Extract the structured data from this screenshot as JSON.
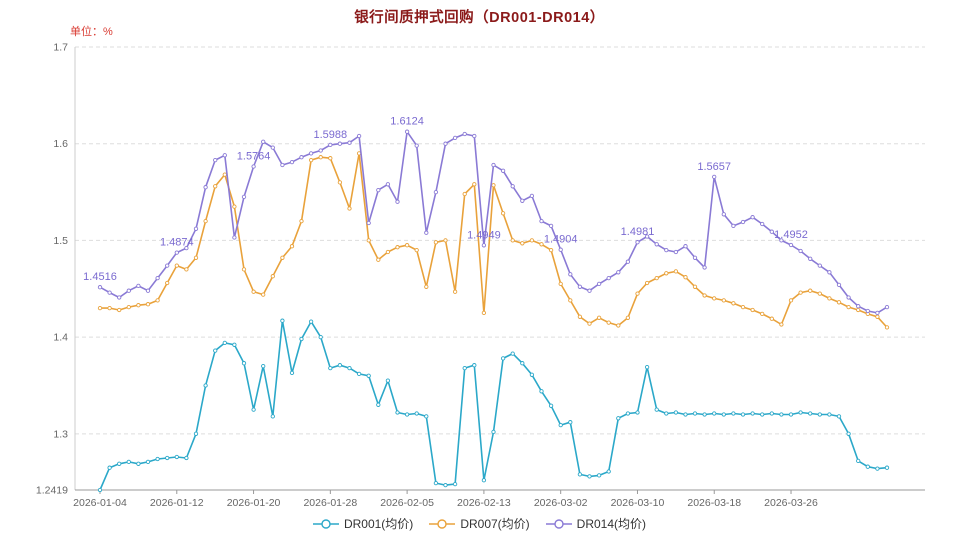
{
  "header": {
    "title": "银行间质押式回购（DR001-DR014）",
    "title_color": "#8B1A1A",
    "unit_label": "单位：%",
    "unit_color": "#D93B32"
  },
  "chart_data": {
    "type": "line",
    "title": "银行间质押式回购（DR001-DR014）",
    "ylabel": "单位：%",
    "ylim": [
      1.2419,
      1.7
    ],
    "grid": "horizontal-dashed",
    "legend_position": "bottom",
    "legend_text_color": "#333333",
    "axis_label_color": "#666666",
    "grid_color": "#DDDDDD",
    "axis_line_color": "#999999",
    "left_axis_color": "#CCCCCC",
    "annotation_color": "#7A6AD0",
    "annotation_series": "dr014",
    "y_ticks": [
      {
        "label": "1.7",
        "value": 1.7
      },
      {
        "label": "1.6",
        "value": 1.6
      },
      {
        "label": "1.5",
        "value": 1.5
      },
      {
        "label": "1.4",
        "value": 1.4
      },
      {
        "label": "1.3",
        "value": 1.3
      },
      {
        "label": "1.2419",
        "value": 1.2419
      }
    ],
    "x_tick_labels": [
      "2026-01-04",
      "2026-01-12",
      "2026-01-20",
      "2026-01-28",
      "2026-02-05",
      "2026-02-13",
      "2026-03-02",
      "2026-03-10",
      "2026-03-18",
      "2026-03-26"
    ],
    "x_tick_indices": [
      0,
      8,
      16,
      24,
      32,
      40,
      48,
      56,
      64,
      72
    ],
    "annotations": [
      {
        "index": 0,
        "text": "1.4516"
      },
      {
        "index": 8,
        "text": "1.4874"
      },
      {
        "index": 16,
        "text": "1.5764"
      },
      {
        "index": 24,
        "text": "1.5988"
      },
      {
        "index": 32,
        "text": "1.6124"
      },
      {
        "index": 40,
        "text": "1.4949"
      },
      {
        "index": 48,
        "text": "1.4904"
      },
      {
        "index": 56,
        "text": "1.4981"
      },
      {
        "index": 64,
        "text": "1.5657"
      },
      {
        "index": 72,
        "text": "1.4952"
      }
    ],
    "series": [
      {
        "id": "dr001",
        "name": "DR001(均价)",
        "color": "#2BA8C9",
        "values": [
          1.2419,
          1.265,
          1.269,
          1.271,
          1.269,
          1.271,
          1.274,
          1.275,
          1.276,
          1.275,
          1.3,
          1.35,
          1.386,
          1.394,
          1.392,
          1.373,
          1.325,
          1.37,
          1.318,
          1.417,
          1.363,
          1.398,
          1.416,
          1.4,
          1.368,
          1.371,
          1.368,
          1.362,
          1.36,
          1.33,
          1.355,
          1.322,
          1.32,
          1.321,
          1.318,
          1.249,
          1.247,
          1.248,
          1.368,
          1.371,
          1.252,
          1.302,
          1.378,
          1.383,
          1.373,
          1.361,
          1.344,
          1.329,
          1.309,
          1.312,
          1.258,
          1.256,
          1.257,
          1.261,
          1.316,
          1.321,
          1.322,
          1.369,
          1.325,
          1.321,
          1.322,
          1.32,
          1.321,
          1.32,
          1.321,
          1.32,
          1.321,
          1.32,
          1.321,
          1.32,
          1.321,
          1.32,
          1.32,
          1.322,
          1.321,
          1.32,
          1.32,
          1.318,
          1.3,
          1.272,
          1.266,
          1.264,
          1.265
        ]
      },
      {
        "id": "dr007",
        "name": "DR007(均价)",
        "color": "#E9A23B",
        "values": [
          1.43,
          1.43,
          1.428,
          1.431,
          1.433,
          1.434,
          1.438,
          1.456,
          1.474,
          1.47,
          1.482,
          1.52,
          1.556,
          1.568,
          1.535,
          1.47,
          1.447,
          1.444,
          1.463,
          1.482,
          1.494,
          1.52,
          1.583,
          1.586,
          1.585,
          1.56,
          1.533,
          1.59,
          1.5,
          1.48,
          1.488,
          1.493,
          1.495,
          1.49,
          1.452,
          1.498,
          1.5,
          1.447,
          1.548,
          1.558,
          1.425,
          1.557,
          1.528,
          1.5,
          1.497,
          1.5,
          1.496,
          1.49,
          1.455,
          1.438,
          1.421,
          1.414,
          1.42,
          1.415,
          1.412,
          1.42,
          1.445,
          1.456,
          1.461,
          1.466,
          1.468,
          1.462,
          1.452,
          1.443,
          1.44,
          1.438,
          1.435,
          1.431,
          1.428,
          1.424,
          1.419,
          1.413,
          1.438,
          1.446,
          1.448,
          1.445,
          1.44,
          1.436,
          1.431,
          1.428,
          1.424,
          1.421,
          1.41
        ]
      },
      {
        "id": "dr014",
        "name": "DR014(均价)",
        "color": "#8A7AD5",
        "values": [
          1.4516,
          1.446,
          1.441,
          1.448,
          1.453,
          1.448,
          1.461,
          1.474,
          1.4874,
          1.492,
          1.512,
          1.555,
          1.583,
          1.588,
          1.503,
          1.545,
          1.5764,
          1.602,
          1.596,
          1.578,
          1.581,
          1.586,
          1.59,
          1.593,
          1.5988,
          1.6,
          1.601,
          1.608,
          1.518,
          1.552,
          1.558,
          1.54,
          1.6124,
          1.598,
          1.508,
          1.55,
          1.6,
          1.606,
          1.61,
          1.608,
          1.4949,
          1.578,
          1.572,
          1.556,
          1.541,
          1.546,
          1.52,
          1.515,
          1.4904,
          1.465,
          1.452,
          1.448,
          1.455,
          1.461,
          1.467,
          1.478,
          1.4981,
          1.504,
          1.496,
          1.49,
          1.488,
          1.494,
          1.482,
          1.472,
          1.5657,
          1.527,
          1.515,
          1.519,
          1.524,
          1.517,
          1.509,
          1.5,
          1.4952,
          1.489,
          1.481,
          1.474,
          1.467,
          1.454,
          1.441,
          1.432,
          1.427,
          1.425,
          1.431
        ]
      }
    ]
  }
}
